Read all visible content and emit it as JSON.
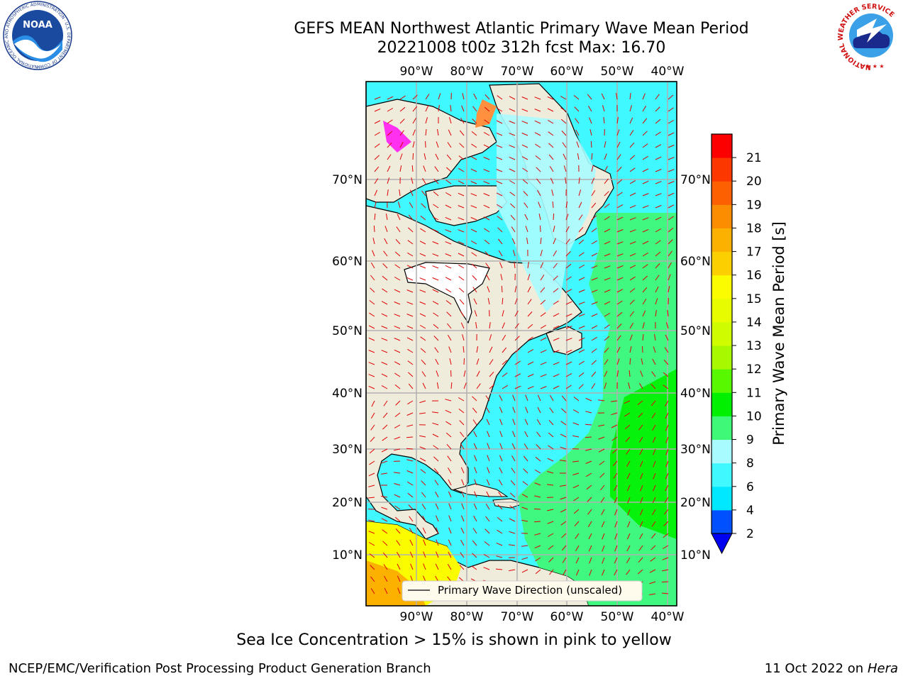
{
  "header": {
    "title_line1": "GEFS MEAN Northwest Atlantic Primary Wave Mean Period",
    "title_line2": "20221008 t00z 312h fcst   Max: 16.70"
  },
  "logos": {
    "noaa_text": "NOAA",
    "noaa_ring_text": "NATIONAL OCEANIC AND ATMOSPHERIC ADMINISTRATION · U.S. DEPARTMENT OF COMMERCE",
    "nws_ring_text": "NATIONAL WEATHER SERVICE"
  },
  "map": {
    "lon_labels": [
      "90°W",
      "80°W",
      "70°W",
      "60°W",
      "50°W",
      "40°W"
    ],
    "lat_labels": [
      "10°N",
      "20°N",
      "30°N",
      "40°N",
      "50°N",
      "60°N",
      "70°N"
    ],
    "legend_label": "Primary Wave Direction (unscaled)",
    "colors": {
      "land": "#efecdc",
      "coast": "#000000",
      "arrow": "#e00000",
      "grid": "#b0b0b0"
    }
  },
  "colorbar": {
    "label": "Primary Wave Mean Period [s]",
    "ticks": [
      "2",
      "4",
      "6",
      "8",
      "9",
      "10",
      "11",
      "12",
      "13",
      "14",
      "15",
      "16",
      "17",
      "18",
      "19",
      "20",
      "21"
    ],
    "colors": [
      "#0050ff",
      "#00e8ff",
      "#40f8ff",
      "#a8fcff",
      "#40f878",
      "#00f000",
      "#58f800",
      "#a8f800",
      "#d0fc00",
      "#e8fc00",
      "#fcfc00",
      "#fcd000",
      "#fcb000",
      "#fc8c00",
      "#fc6000",
      "#fc3800",
      "#fc0000"
    ],
    "under_color": "#0000f0"
  },
  "caption": "Sea Ice Concentration > 15% is shown in pink to yellow",
  "footer": {
    "left": "NCEP/EMC/Verification Post Processing Product Generation Branch",
    "right_date": "11 Oct 2022 on ",
    "right_machine": "Hera"
  }
}
